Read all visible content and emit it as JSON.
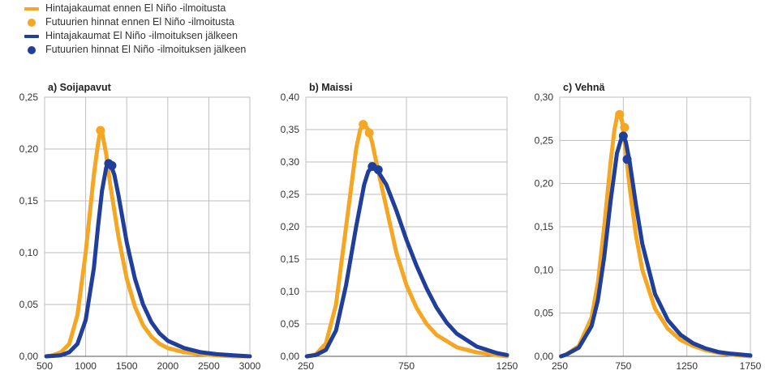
{
  "colors": {
    "before": "#F5A623",
    "after": "#1F3F9A",
    "grid": "#BFBFBF",
    "axis": "#333333"
  },
  "legend": [
    {
      "label": "Hintajakaumat ennen El Niño -ilmoitusta",
      "symbol": "line",
      "series": "before"
    },
    {
      "label": "Futuurien hinnat ennen El Niño -ilmoitusta",
      "symbol": "dot",
      "series": "before"
    },
    {
      "label": "Hintajakaumat El Niño -ilmoituksen jälkeen",
      "symbol": "line",
      "series": "after"
    },
    {
      "label": "Futuurien hinnat El Niño -ilmoituksen jälkeen",
      "symbol": "dot",
      "series": "after"
    }
  ],
  "chart_data": [
    {
      "type": "line",
      "title": "a) Soijapavut",
      "xlim": [
        500,
        3000
      ],
      "ylim": [
        0,
        0.25
      ],
      "xticks": [
        "500",
        "1000",
        "1500",
        "2000",
        "2500",
        "3000"
      ],
      "yticks": [
        "0,00",
        "0,05",
        "0,10",
        "0,15",
        "0,20",
        "0,25"
      ],
      "grid": true,
      "series": [
        {
          "key": "before",
          "x": [
            520,
            600,
            700,
            800,
            900,
            1000,
            1100,
            1150,
            1180,
            1200,
            1250,
            1300,
            1400,
            1500,
            1600,
            1700,
            1800,
            1900,
            2000,
            2200,
            2400,
            2600,
            2800,
            3000
          ],
          "y": [
            0.0,
            0.001,
            0.004,
            0.012,
            0.04,
            0.1,
            0.175,
            0.205,
            0.218,
            0.216,
            0.195,
            0.165,
            0.115,
            0.075,
            0.048,
            0.03,
            0.019,
            0.012,
            0.008,
            0.004,
            0.002,
            0.001,
            0.0,
            0.0
          ]
        },
        {
          "key": "after",
          "x": [
            520,
            700,
            800,
            900,
            1000,
            1100,
            1150,
            1200,
            1250,
            1280,
            1300,
            1350,
            1400,
            1500,
            1600,
            1700,
            1800,
            1900,
            2000,
            2200,
            2400,
            2600,
            2800,
            3000
          ],
          "y": [
            0.0,
            0.001,
            0.004,
            0.012,
            0.035,
            0.085,
            0.125,
            0.16,
            0.182,
            0.187,
            0.186,
            0.175,
            0.155,
            0.11,
            0.075,
            0.05,
            0.033,
            0.022,
            0.015,
            0.008,
            0.004,
            0.002,
            0.001,
            0.0
          ]
        }
      ],
      "markers": [
        {
          "key": "before",
          "x": 1180,
          "y": 0.218
        },
        {
          "key": "after",
          "x": 1280,
          "y": 0.186
        },
        {
          "key": "after",
          "x": 1320,
          "y": 0.184
        }
      ]
    },
    {
      "type": "line",
      "title": "b) Maissi",
      "xlim": [
        250,
        1250
      ],
      "ylim": [
        0,
        0.4
      ],
      "xticks": [
        "250",
        "750",
        "1250"
      ],
      "yticks": [
        "0,00",
        "0,05",
        "0,10",
        "0,15",
        "0,20",
        "0,25",
        "0,30",
        "0,35",
        "0,40"
      ],
      "grid": true,
      "series": [
        {
          "key": "before",
          "x": [
            255,
            300,
            350,
            400,
            450,
            500,
            520,
            540,
            560,
            580,
            600,
            650,
            700,
            750,
            800,
            850,
            900,
            1000,
            1100,
            1200,
            1250
          ],
          "y": [
            0.0,
            0.003,
            0.02,
            0.08,
            0.2,
            0.32,
            0.35,
            0.358,
            0.35,
            0.33,
            0.3,
            0.23,
            0.16,
            0.11,
            0.075,
            0.05,
            0.033,
            0.014,
            0.006,
            0.002,
            0.0
          ]
        },
        {
          "key": "after",
          "x": [
            255,
            300,
            350,
            400,
            450,
            500,
            540,
            560,
            580,
            600,
            650,
            700,
            750,
            800,
            850,
            900,
            950,
            1000,
            1100,
            1200,
            1250
          ],
          "y": [
            0.0,
            0.002,
            0.01,
            0.04,
            0.11,
            0.2,
            0.265,
            0.285,
            0.293,
            0.29,
            0.265,
            0.225,
            0.18,
            0.14,
            0.105,
            0.075,
            0.052,
            0.035,
            0.015,
            0.005,
            0.002
          ]
        }
      ],
      "markers": [
        {
          "key": "before",
          "x": 535,
          "y": 0.358
        },
        {
          "key": "before",
          "x": 565,
          "y": 0.345
        },
        {
          "key": "after",
          "x": 580,
          "y": 0.293
        },
        {
          "key": "after",
          "x": 610,
          "y": 0.288
        }
      ]
    },
    {
      "type": "line",
      "title": "c) Vehnä",
      "xlim": [
        250,
        1750
      ],
      "ylim": [
        0,
        0.3
      ],
      "xticks": [
        "250",
        "750",
        "1250",
        "1750"
      ],
      "yticks": [
        "0,00",
        "0,05",
        "0,10",
        "0,15",
        "0,20",
        "0,25",
        "0,30"
      ],
      "grid": true,
      "series": [
        {
          "key": "before",
          "x": [
            260,
            300,
            400,
            500,
            550,
            600,
            650,
            680,
            700,
            720,
            740,
            760,
            800,
            850,
            900,
            1000,
            1100,
            1200,
            1300,
            1400,
            1500,
            1600,
            1750
          ],
          "y": [
            0.0,
            0.002,
            0.012,
            0.045,
            0.085,
            0.15,
            0.225,
            0.262,
            0.277,
            0.28,
            0.272,
            0.25,
            0.195,
            0.14,
            0.1,
            0.055,
            0.032,
            0.019,
            0.012,
            0.007,
            0.004,
            0.002,
            0.0
          ]
        },
        {
          "key": "after",
          "x": [
            260,
            300,
            400,
            500,
            550,
            600,
            650,
            700,
            730,
            750,
            770,
            800,
            850,
            900,
            1000,
            1100,
            1200,
            1300,
            1400,
            1500,
            1600,
            1750
          ],
          "y": [
            0.0,
            0.002,
            0.01,
            0.035,
            0.065,
            0.115,
            0.18,
            0.235,
            0.25,
            0.255,
            0.248,
            0.225,
            0.175,
            0.13,
            0.072,
            0.042,
            0.025,
            0.015,
            0.009,
            0.005,
            0.003,
            0.001
          ]
        }
      ],
      "markers": [
        {
          "key": "before",
          "x": 720,
          "y": 0.28
        },
        {
          "key": "before",
          "x": 760,
          "y": 0.265
        },
        {
          "key": "after",
          "x": 750,
          "y": 0.255
        },
        {
          "key": "after",
          "x": 780,
          "y": 0.228
        }
      ]
    }
  ]
}
